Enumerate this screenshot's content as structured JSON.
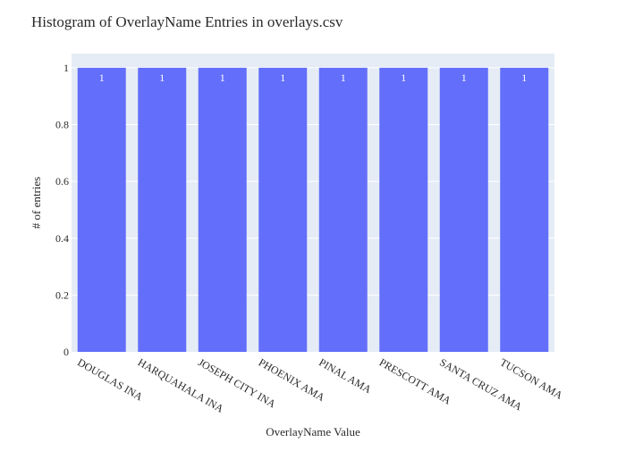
{
  "chart_data": {
    "type": "bar",
    "title": "Histogram of OverlayName Entries in overlays.csv",
    "xlabel": "OverlayName Value",
    "ylabel": "# of entries",
    "categories": [
      "DOUGLAS INA",
      "HARQUAHALA INA",
      "JOSEPH CITY INA",
      "PHOENIX AMA",
      "PINAL AMA",
      "PRESCOTT AMA",
      "SANTA CRUZ AMA",
      "TUCSON AMA"
    ],
    "values": [
      1,
      1,
      1,
      1,
      1,
      1,
      1,
      1
    ],
    "data_labels": [
      "1",
      "1",
      "1",
      "1",
      "1",
      "1",
      "1",
      "1"
    ],
    "ylim": [
      0,
      1.05
    ],
    "yticks": [
      0,
      0.2,
      0.4,
      0.6,
      0.8,
      1
    ],
    "ytick_labels": [
      "0",
      "0.2",
      "0.4",
      "0.6",
      "0.8",
      "1"
    ],
    "grid": true,
    "colors": {
      "bar": "#636efa",
      "plot_bg": "#e5ecf6",
      "grid": "#ffffff"
    }
  }
}
